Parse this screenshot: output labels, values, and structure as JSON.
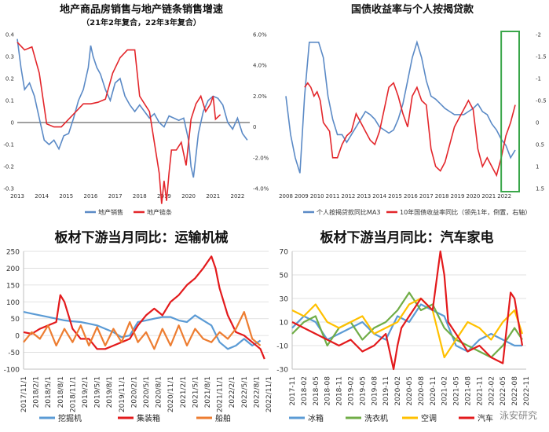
{
  "watermark": "泳安研究",
  "chart_data": [
    {
      "id": "c1",
      "type": "line",
      "title": "地产商品房销售与地产链条销售增速",
      "subtitle": "（21年2年复合，22年3年复合）",
      "x_ticks": [
        "2013",
        "2014",
        "2015",
        "2016",
        "2017",
        "2018",
        "2019",
        "2020",
        "2021",
        "2022"
      ],
      "xlim": [
        2013,
        2022.5
      ],
      "ylim_left": [
        -0.3,
        0.4
      ],
      "y_ticks_left": [
        "0.4",
        "0.3",
        "0.2",
        "0.1",
        "0",
        "-0.1",
        "-0.2",
        "-0.3"
      ],
      "ylim_right": [
        -4.0,
        6.0
      ],
      "y_ticks_right": [
        "6.0%",
        "4.0%",
        "2.0%",
        "0",
        "-2.0%",
        "-4.0%"
      ],
      "grid": false,
      "legend_position": "bottom",
      "series": [
        {
          "name": "地产销售",
          "color": "#5b8ac6",
          "axis": "left",
          "x": [
            2013.0,
            2013.15,
            2013.3,
            2013.5,
            2013.7,
            2013.9,
            2014.1,
            2014.3,
            2014.5,
            2014.7,
            2014.9,
            2015.1,
            2015.3,
            2015.5,
            2015.7,
            2015.9,
            2016.0,
            2016.1,
            2016.25,
            2016.4,
            2016.6,
            2016.8,
            2017.0,
            2017.2,
            2017.4,
            2017.6,
            2017.8,
            2018.0,
            2018.2,
            2018.4,
            2018.6,
            2018.8,
            2019.0,
            2019.2,
            2019.4,
            2019.6,
            2019.8,
            2020.0,
            2020.1,
            2020.2,
            2020.3,
            2020.4,
            2020.6,
            2020.8,
            2021.0,
            2021.2,
            2021.4,
            2021.6,
            2021.8,
            2022.0,
            2022.2,
            2022.4
          ],
          "y": [
            0.38,
            0.25,
            0.15,
            0.18,
            0.12,
            0.02,
            -0.08,
            -0.1,
            -0.08,
            -0.12,
            -0.06,
            -0.05,
            0.02,
            0.1,
            0.15,
            0.25,
            0.35,
            0.3,
            0.25,
            0.22,
            0.15,
            0.1,
            0.18,
            0.2,
            0.12,
            0.08,
            0.05,
            0.08,
            0.05,
            0.02,
            0.04,
            0.0,
            -0.02,
            0.03,
            0.02,
            0.01,
            0.02,
            -0.08,
            -0.2,
            -0.25,
            -0.15,
            -0.05,
            0.05,
            0.1,
            0.12,
            0.11,
            0.08,
            0.0,
            -0.03,
            0.02,
            -0.05,
            -0.08
          ]
        },
        {
          "name": "地产链条",
          "color": "#e3262b",
          "axis": "right",
          "x": [
            2013.0,
            2013.3,
            2013.6,
            2013.9,
            2014.2,
            2014.5,
            2014.8,
            2015.1,
            2015.4,
            2015.7,
            2016.0,
            2016.3,
            2016.6,
            2016.9,
            2017.2,
            2017.5,
            2017.8,
            2018.0,
            2018.2,
            2018.4,
            2018.6,
            2018.8,
            2018.9,
            2019.0,
            2019.1,
            2019.2,
            2019.3,
            2019.5,
            2019.7,
            2019.9,
            2020.1,
            2020.3,
            2020.5,
            2020.7,
            2020.9,
            2021.0,
            2021.1,
            2021.3
          ],
          "y": [
            5.5,
            5.0,
            5.2,
            3.5,
            0.2,
            0.0,
            0.0,
            0.5,
            1.0,
            1.5,
            1.5,
            1.6,
            1.8,
            3.5,
            4.5,
            5.0,
            5.0,
            2.0,
            1.5,
            1.0,
            -1.0,
            -3.0,
            -5.0,
            -3.5,
            -4.8,
            -3.0,
            -1.5,
            -1.5,
            -1.0,
            -2.5,
            0.5,
            1.5,
            2.0,
            1.0,
            1.5,
            2.0,
            0.5,
            0.8
          ]
        }
      ]
    },
    {
      "id": "c2",
      "type": "line",
      "title": "国债收益率与个人按揭贷款",
      "x_ticks": [
        "2008",
        "2009",
        "2010",
        "2011",
        "2012",
        "2013",
        "2014",
        "2015",
        "2016",
        "2017",
        "2018",
        "2019",
        "2020",
        "2021",
        "2022"
      ],
      "xlim": [
        2008,
        2023
      ],
      "y_ticks_right": [
        "-2",
        "-1.5",
        "-1",
        "-0.5",
        "0",
        "0.5",
        "1",
        "1.5"
      ],
      "ylim_right": [
        -2,
        1.5
      ],
      "grid": false,
      "legend_position": "bottom",
      "series": [
        {
          "name": "个人按揭贷款同比MA3",
          "color": "#5b8ac6",
          "axis": "left",
          "x": [
            2008.0,
            2008.3,
            2008.6,
            2008.9,
            2009.2,
            2009.5,
            2009.8,
            2010.1,
            2010.4,
            2010.7,
            2011.0,
            2011.3,
            2011.6,
            2011.9,
            2012.2,
            2012.5,
            2012.8,
            2013.1,
            2013.4,
            2013.7,
            2014.0,
            2014.3,
            2014.6,
            2014.9,
            2015.2,
            2015.5,
            2015.8,
            2016.1,
            2016.4,
            2016.7,
            2017.0,
            2017.3,
            2017.6,
            2017.9,
            2018.2,
            2018.5,
            2018.8,
            2019.1,
            2019.4,
            2019.7,
            2020.0,
            2020.3,
            2020.6,
            2020.9,
            2021.2,
            2021.5,
            2021.8,
            2022.1,
            2022.4,
            2022.7
          ],
          "y": [
            60,
            35,
            20,
            10,
            60,
            95,
            95,
            95,
            85,
            60,
            45,
            35,
            35,
            30,
            35,
            40,
            45,
            50,
            48,
            45,
            40,
            38,
            36,
            38,
            45,
            55,
            70,
            85,
            95,
            85,
            70,
            60,
            58,
            55,
            52,
            50,
            48,
            48,
            48,
            50,
            52,
            55,
            50,
            48,
            42,
            38,
            32,
            28,
            20,
            25
          ]
        },
        {
          "name": "10年国债收益率同比（领先1年，倒置，右轴）",
          "color": "#e3262b",
          "axis": "right",
          "x": [
            2009.2,
            2009.4,
            2009.6,
            2009.8,
            2010.0,
            2010.2,
            2010.4,
            2010.6,
            2010.8,
            2011.0,
            2011.3,
            2011.6,
            2011.9,
            2012.2,
            2012.5,
            2012.8,
            2013.1,
            2013.4,
            2013.7,
            2014.0,
            2014.3,
            2014.6,
            2014.9,
            2015.2,
            2015.5,
            2015.8,
            2016.1,
            2016.4,
            2016.7,
            2017.0,
            2017.3,
            2017.6,
            2017.9,
            2018.2,
            2018.5,
            2018.8,
            2019.1,
            2019.4,
            2019.7,
            2020.0,
            2020.3,
            2020.6,
            2020.9,
            2021.2,
            2021.5,
            2021.8,
            2022.1,
            2022.4,
            2022.7
          ],
          "y": [
            -0.8,
            -0.9,
            -0.8,
            -0.6,
            -0.7,
            -0.5,
            0.0,
            0.1,
            0.2,
            0.8,
            0.8,
            0.5,
            0.3,
            0.2,
            -0.2,
            0.0,
            0.2,
            0.4,
            0.5,
            0.2,
            -0.3,
            -0.8,
            -0.9,
            -0.6,
            -0.2,
            0.1,
            -0.6,
            -0.8,
            -0.5,
            -0.4,
            0.6,
            1.0,
            1.1,
            0.9,
            0.5,
            0.1,
            -0.1,
            -0.3,
            -0.5,
            -0.3,
            0.6,
            1.0,
            0.8,
            1.0,
            1.2,
            0.8,
            0.3,
            0.0,
            -0.4
          ]
        }
      ]
    },
    {
      "id": "c3",
      "type": "line",
      "title": "板材下游当月同比：运输机械",
      "x_ticks": [
        "2017/11/1",
        "2018/2/1",
        "2018/5/1",
        "2018/8/1",
        "2018/11/1",
        "2019/2/1",
        "2019/5/1",
        "2019/8/1",
        "2019/11/1",
        "2020/2/1",
        "2020/5/1",
        "2020/8/1",
        "2020/11/1",
        "2021/2/1",
        "2021/5/1",
        "2021/8/1",
        "2021/11/1",
        "2022/2/1",
        "2022/5/1",
        "2022/8/1",
        "2022/11/1"
      ],
      "xlim": [
        0,
        60
      ],
      "ylim": [
        -100,
        250
      ],
      "y_ticks": [
        "250",
        "200",
        "150",
        "100",
        "50",
        "0",
        "-50",
        "-100"
      ],
      "grid": true,
      "legend_position": "bottom",
      "series": [
        {
          "name": "挖掘机",
          "color": "#5b9bd5",
          "x": [
            0,
            2,
            4,
            6,
            8,
            10,
            12,
            14,
            16,
            18,
            20,
            22,
            24,
            26,
            28,
            30,
            32,
            34,
            36,
            38,
            40,
            42,
            44,
            46,
            48,
            50,
            52,
            54,
            56,
            58
          ],
          "y": [
            70,
            65,
            60,
            55,
            50,
            45,
            42,
            40,
            35,
            30,
            20,
            10,
            -5,
            0,
            40,
            45,
            50,
            55,
            55,
            45,
            40,
            60,
            45,
            30,
            -20,
            -40,
            -30,
            -10,
            -30,
            -15
          ]
        },
        {
          "name": "集装箱",
          "color": "#e31a1c",
          "x": [
            0,
            2,
            4,
            6,
            8,
            9,
            10,
            12,
            14,
            16,
            18,
            20,
            22,
            24,
            26,
            28,
            30,
            32,
            34,
            36,
            38,
            40,
            42,
            44,
            46,
            47,
            48,
            50,
            52,
            54,
            56,
            58,
            59
          ],
          "y": [
            10,
            5,
            20,
            30,
            40,
            120,
            100,
            20,
            -10,
            -10,
            -40,
            -40,
            -30,
            -20,
            -10,
            30,
            60,
            80,
            60,
            100,
            120,
            150,
            170,
            200,
            235,
            200,
            140,
            60,
            10,
            0,
            -20,
            -40,
            -70
          ]
        },
        {
          "name": "船舶",
          "color": "#ed7d31",
          "x": [
            0,
            2,
            4,
            6,
            8,
            10,
            12,
            14,
            16,
            18,
            20,
            22,
            24,
            26,
            28,
            30,
            32,
            34,
            36,
            38,
            40,
            42,
            44,
            46,
            48,
            50,
            52,
            54,
            56,
            58
          ],
          "y": [
            -20,
            10,
            -10,
            30,
            -30,
            20,
            -20,
            30,
            -30,
            25,
            -30,
            20,
            -20,
            40,
            -20,
            10,
            -40,
            20,
            -30,
            30,
            -30,
            20,
            -10,
            -20,
            10,
            -10,
            20,
            70,
            -10,
            -30
          ]
        }
      ]
    },
    {
      "id": "c4",
      "type": "line",
      "title": "板材下游当月同比：汽车家电",
      "x_ticks": [
        "2017-11",
        "2018-02",
        "2018-05",
        "2018-08",
        "2018-11",
        "2019-02",
        "2019-05",
        "2019-08",
        "2019-11",
        "2020-02",
        "2020-05",
        "2020-08",
        "2020-11",
        "2021-02",
        "2021-05",
        "2021-08",
        "2021-11",
        "2022-02",
        "2022-05",
        "2022-08",
        "2022-11"
      ],
      "xlim": [
        0,
        60
      ],
      "ylim": [
        -30,
        70
      ],
      "y_ticks": [
        "70",
        "50",
        "30",
        "10",
        "-10",
        "-30"
      ],
      "grid": true,
      "legend_position": "bottom",
      "series": [
        {
          "name": "冰箱",
          "color": "#5b9bd5",
          "x": [
            0,
            3,
            6,
            9,
            12,
            15,
            18,
            21,
            24,
            27,
            30,
            33,
            36,
            39,
            42,
            45,
            48,
            51,
            54,
            57,
            59
          ],
          "y": [
            5,
            15,
            10,
            -5,
            0,
            5,
            10,
            0,
            -5,
            15,
            10,
            25,
            20,
            15,
            -10,
            -15,
            -5,
            0,
            -5,
            -10,
            -10
          ]
        },
        {
          "name": "洗衣机",
          "color": "#70ad47",
          "x": [
            0,
            3,
            6,
            9,
            12,
            15,
            18,
            21,
            24,
            27,
            30,
            33,
            36,
            39,
            42,
            45,
            48,
            51,
            54,
            57,
            59
          ],
          "y": [
            0,
            10,
            15,
            -10,
            5,
            10,
            -5,
            5,
            10,
            20,
            35,
            20,
            25,
            5,
            -5,
            -10,
            -15,
            -20,
            -10,
            5,
            -5
          ]
        },
        {
          "name": "空调",
          "color": "#ffc000",
          "x": [
            0,
            3,
            6,
            9,
            12,
            15,
            18,
            21,
            24,
            27,
            30,
            33,
            36,
            39,
            42,
            45,
            48,
            51,
            54,
            57,
            59
          ],
          "y": [
            20,
            15,
            25,
            10,
            5,
            10,
            15,
            0,
            5,
            10,
            25,
            30,
            20,
            -20,
            -5,
            10,
            5,
            -5,
            10,
            20,
            0
          ]
        },
        {
          "name": "汽车",
          "color": "#e31a1c",
          "x": [
            0,
            3,
            6,
            9,
            12,
            15,
            18,
            21,
            24,
            26,
            27,
            28,
            30,
            33,
            36,
            38,
            39,
            40,
            42,
            45,
            48,
            51,
            54,
            56,
            57,
            59
          ],
          "y": [
            10,
            5,
            0,
            -5,
            -10,
            -5,
            -15,
            -10,
            0,
            -30,
            -10,
            5,
            15,
            30,
            20,
            70,
            50,
            10,
            0,
            -15,
            -10,
            -20,
            -25,
            35,
            30,
            -10
          ]
        }
      ]
    }
  ]
}
